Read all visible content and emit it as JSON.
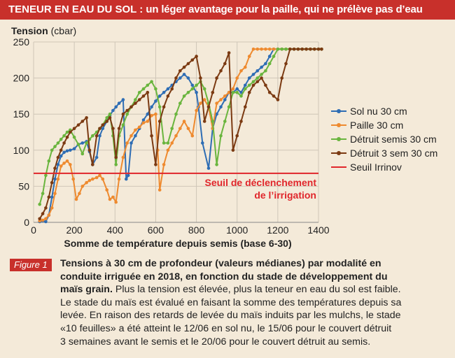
{
  "header": {
    "title_strong": "TENEUR EN EAU DU SOL :",
    "title_rest": "un léger avantage pour la paille, qui ne prélève pas d’eau"
  },
  "colors": {
    "banner": "#c8302b",
    "background": "#f4ead9",
    "sol_nu": "#2e6db4",
    "paille": "#ee8a2f",
    "detruit_semis": "#6ab53e",
    "detruit_3sem": "#7b3a12",
    "seuil": "#e0262b"
  },
  "chart_data": {
    "type": "line",
    "ylabel": "Tension",
    "yunit": "(cbar)",
    "xlabel": "Somme de température depuis semis (base 6-30)",
    "xlim": [
      0,
      1400
    ],
    "ylim": [
      0,
      250
    ],
    "xticks": [
      0,
      200,
      400,
      600,
      800,
      1000,
      1200,
      1400
    ],
    "yticks": [
      0,
      50,
      100,
      150,
      200,
      250
    ],
    "legend_position": "right",
    "threshold": {
      "name": "Seuil Irrinov",
      "value": 68,
      "label_line1": "Seuil de déclenchement",
      "label_line2": "de l’irrigation"
    },
    "series": [
      {
        "name": "Sol nu 30 cm",
        "color": "#2e6db4",
        "x": [
          30,
          45,
          60,
          75,
          90,
          105,
          120,
          135,
          150,
          165,
          180,
          200,
          220,
          240,
          260,
          275,
          290,
          310,
          325,
          340,
          360,
          375,
          390,
          405,
          420,
          440,
          455,
          465,
          480,
          500,
          520,
          540,
          560,
          580,
          600,
          620,
          640,
          660,
          680,
          700,
          720,
          740,
          760,
          780,
          800,
          810,
          830,
          860,
          880,
          900,
          920,
          940,
          960,
          980,
          1000,
          1020,
          1040,
          1060,
          1080,
          1100,
          1120,
          1140,
          1160,
          1180,
          1200,
          1220,
          1240,
          1260,
          1280,
          1300,
          1320,
          1340,
          1360,
          1380,
          1400,
          1415
        ],
        "y": [
          1,
          2,
          1,
          10,
          35,
          60,
          80,
          92,
          97,
          99,
          100,
          102,
          108,
          110,
          112,
          98,
          80,
          90,
          120,
          130,
          140,
          148,
          155,
          160,
          165,
          170,
          60,
          65,
          110,
          120,
          130,
          142,
          150,
          160,
          168,
          175,
          180,
          185,
          190,
          195,
          200,
          205,
          200,
          190,
          180,
          160,
          110,
          75,
          130,
          150,
          160,
          170,
          180,
          180,
          185,
          180,
          190,
          200,
          205,
          210,
          215,
          220,
          230,
          240,
          240,
          240,
          240,
          240,
          240,
          240,
          240,
          240,
          240,
          240,
          240,
          240
        ]
      },
      {
        "name": "Paille 30 cm",
        "color": "#ee8a2f",
        "x": [
          30,
          45,
          60,
          75,
          90,
          105,
          120,
          135,
          150,
          165,
          180,
          195,
          210,
          225,
          240,
          260,
          275,
          290,
          310,
          325,
          340,
          360,
          375,
          390,
          405,
          420,
          440,
          460,
          480,
          500,
          520,
          540,
          560,
          580,
          600,
          610,
          620,
          640,
          660,
          680,
          700,
          720,
          740,
          760,
          780,
          800,
          820,
          840,
          860,
          880,
          900,
          920,
          940,
          960,
          980,
          1000,
          1020,
          1040,
          1060,
          1080,
          1100,
          1120,
          1140,
          1160,
          1180,
          1200,
          1220,
          1240,
          1260,
          1280,
          1300,
          1320,
          1340,
          1360,
          1380,
          1400,
          1415
        ],
        "y": [
          2,
          3,
          5,
          10,
          20,
          40,
          60,
          78,
          82,
          85,
          80,
          60,
          32,
          40,
          50,
          55,
          58,
          60,
          62,
          65,
          60,
          45,
          32,
          35,
          28,
          60,
          90,
          110,
          120,
          128,
          132,
          138,
          140,
          148,
          150,
          100,
          45,
          80,
          100,
          110,
          120,
          130,
          140,
          130,
          120,
          155,
          165,
          170,
          160,
          130,
          165,
          170,
          175,
          180,
          185,
          200,
          210,
          215,
          230,
          240,
          240,
          240,
          240,
          240,
          240,
          240,
          240,
          240,
          240,
          240,
          240,
          240,
          240,
          240,
          240,
          240,
          240
        ]
      },
      {
        "name": "Détruit semis 30 cm",
        "color": "#6ab53e",
        "x": [
          30,
          45,
          60,
          75,
          90,
          105,
          120,
          135,
          150,
          165,
          180,
          200,
          220,
          240,
          260,
          275,
          290,
          310,
          325,
          340,
          360,
          375,
          390,
          405,
          420,
          440,
          460,
          480,
          500,
          520,
          540,
          560,
          580,
          600,
          620,
          640,
          660,
          680,
          700,
          720,
          740,
          760,
          780,
          800,
          820,
          840,
          860,
          880,
          900,
          920,
          940,
          960,
          980,
          1000,
          1020,
          1040,
          1060,
          1080,
          1100,
          1120,
          1140,
          1160,
          1180,
          1200,
          1220,
          1240,
          1260,
          1280,
          1300,
          1320,
          1340,
          1360,
          1380,
          1400,
          1415
        ],
        "y": [
          25,
          40,
          65,
          85,
          100,
          105,
          110,
          115,
          120,
          125,
          128,
          118,
          108,
          95,
          110,
          115,
          120,
          125,
          130,
          135,
          145,
          150,
          120,
          80,
          120,
          135,
          150,
          160,
          170,
          180,
          185,
          190,
          195,
          185,
          160,
          110,
          110,
          130,
          150,
          165,
          175,
          180,
          185,
          190,
          195,
          185,
          165,
          140,
          80,
          120,
          140,
          160,
          180,
          180,
          175,
          185,
          190,
          195,
          200,
          205,
          210,
          220,
          230,
          240,
          240,
          240,
          240,
          240,
          240,
          240,
          240,
          240,
          240,
          240,
          240
        ]
      },
      {
        "name": "Détruit 3 sem 30 cm",
        "color": "#7b3a12",
        "x": [
          30,
          45,
          60,
          75,
          90,
          105,
          120,
          135,
          150,
          165,
          180,
          200,
          220,
          240,
          260,
          275,
          290,
          310,
          325,
          340,
          360,
          375,
          390,
          405,
          420,
          440,
          460,
          480,
          500,
          520,
          540,
          560,
          580,
          600,
          620,
          640,
          660,
          680,
          700,
          720,
          740,
          760,
          780,
          800,
          820,
          840,
          860,
          880,
          900,
          920,
          940,
          960,
          980,
          1000,
          1020,
          1040,
          1060,
          1080,
          1100,
          1120,
          1140,
          1160,
          1180,
          1200,
          1220,
          1240,
          1260,
          1280,
          1300,
          1320,
          1340,
          1360,
          1380,
          1400,
          1415
        ],
        "y": [
          5,
          12,
          20,
          35,
          55,
          75,
          90,
          100,
          110,
          118,
          125,
          130,
          135,
          140,
          145,
          100,
          80,
          120,
          130,
          135,
          140,
          145,
          130,
          90,
          130,
          150,
          155,
          160,
          165,
          170,
          175,
          180,
          120,
          80,
          140,
          160,
          175,
          185,
          200,
          210,
          215,
          220,
          225,
          230,
          200,
          140,
          160,
          180,
          200,
          210,
          220,
          235,
          100,
          120,
          140,
          160,
          180,
          190,
          195,
          200,
          190,
          180,
          175,
          170,
          200,
          220,
          240,
          240,
          240,
          240,
          240,
          240,
          240,
          240,
          240
        ]
      }
    ]
  },
  "caption": {
    "figure_label": "Figure 1",
    "bold_line1": "Tensions à 30 cm de profondeur (valeurs médianes) par modalité en",
    "bold_line2": "conduite irriguée en 2018, en fonction du stade de développement du",
    "bold_line3": "maïs grain.",
    "line3_rest": " Plus la tension est élevée, plus la teneur en eau du sol est faible.",
    "line4": "Le stade du maïs est évalué en faisant la somme des températures depuis sa",
    "line5": "levée. En raison des retards de levée du maïs induits par les mulchs, le stade",
    "line6": "«10 feuilles» a été atteint le 12/06 en sol nu, le 15/06 pour le couvert détruit",
    "line7": "3 semaines avant le semis et le 20/06 pour le couvert détruit au semis."
  }
}
